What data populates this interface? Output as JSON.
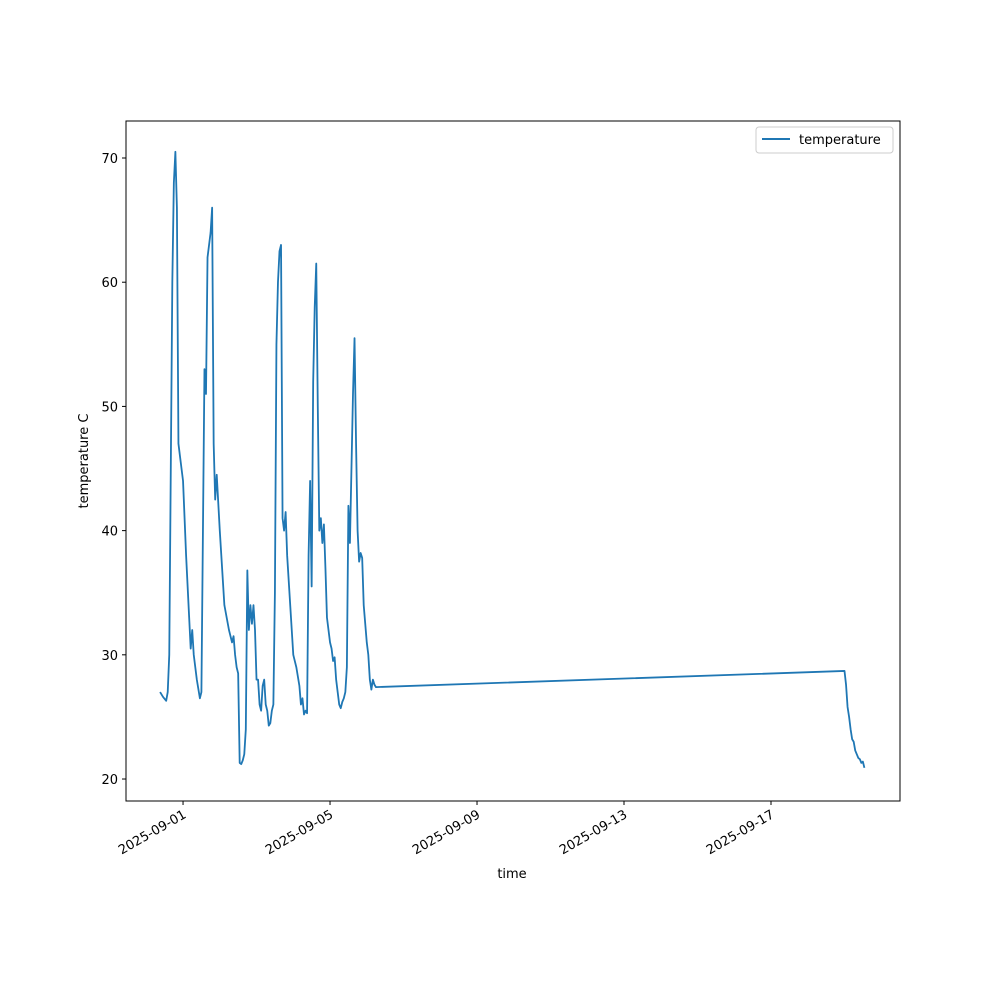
{
  "chart_data": {
    "type": "line",
    "title_x": "time",
    "x_label": "time",
    "y_label": "temperature C",
    "legend": "upper right",
    "grid": false,
    "xlim": [
      "2025-08-30T10:45",
      "2025-09-20T12:15"
    ],
    "xticks": [
      "2025-09-01",
      "2025-09-05",
      "2025-09-09",
      "2025-09-13",
      "2025-09-17"
    ],
    "ylim": [
      18.23,
      72.98
    ],
    "yticks": [
      20,
      30,
      40,
      50,
      60,
      70
    ],
    "x": [
      "2025-08-31T09:00",
      "2025-08-31T11:00",
      "2025-08-31T13:00",
      "2025-08-31T14:00",
      "2025-08-31T15:00",
      "2025-08-31T17:00",
      "2025-08-31T18:00",
      "2025-08-31T19:00",
      "2025-08-31T20:00",
      "2025-08-31T21:00",
      "2025-08-31T22:00",
      "2025-09-01T00:00",
      "2025-09-01T02:00",
      "2025-09-01T04:00",
      "2025-09-01T05:00",
      "2025-09-01T06:00",
      "2025-09-01T07:00",
      "2025-09-01T09:00",
      "2025-09-01T11:00",
      "2025-09-01T12:00",
      "2025-09-01T13:00",
      "2025-09-01T14:00",
      "2025-09-01T15:00",
      "2025-09-01T16:00",
      "2025-09-01T18:00",
      "2025-09-01T19:00",
      "2025-09-01T20:00",
      "2025-09-01T21:00",
      "2025-09-01T22:00",
      "2025-09-02T00:00",
      "2025-09-02T03:00",
      "2025-09-02T06:00",
      "2025-09-02T08:00",
      "2025-09-02T09:00",
      "2025-09-02T10:00",
      "2025-09-02T11:00",
      "2025-09-02T12:00",
      "2025-09-02T13:00",
      "2025-09-02T14:00",
      "2025-09-02T15:00",
      "2025-09-02T16:00",
      "2025-09-02T17:00",
      "2025-09-02T18:00",
      "2025-09-02T19:00",
      "2025-09-02T20:00",
      "2025-09-02T21:00",
      "2025-09-02T22:00",
      "2025-09-02T23:00",
      "2025-09-03T00:00",
      "2025-09-03T01:00",
      "2025-09-03T02:00",
      "2025-09-03T03:00",
      "2025-09-03T04:00",
      "2025-09-03T05:00",
      "2025-09-03T06:00",
      "2025-09-03T07:00",
      "2025-09-03T08:00",
      "2025-09-03T09:00",
      "2025-09-03T10:00",
      "2025-09-03T11:00",
      "2025-09-03T12:00",
      "2025-09-03T13:00",
      "2025-09-03T14:00",
      "2025-09-03T15:00",
      "2025-09-03T16:00",
      "2025-09-03T17:00",
      "2025-09-03T18:00",
      "2025-09-03T19:00",
      "2025-09-03T20:00",
      "2025-09-03T22:00",
      "2025-09-04T00:00",
      "2025-09-04T02:00",
      "2025-09-04T04:00",
      "2025-09-04T05:00",
      "2025-09-04T06:00",
      "2025-09-04T07:00",
      "2025-09-04T08:00",
      "2025-09-04T09:00",
      "2025-09-04T10:00",
      "2025-09-04T11:00",
      "2025-09-04T12:00",
      "2025-09-04T13:00",
      "2025-09-04T14:00",
      "2025-09-04T15:00",
      "2025-09-04T16:00",
      "2025-09-04T17:00",
      "2025-09-04T18:00",
      "2025-09-04T19:00",
      "2025-09-04T20:00",
      "2025-09-04T21:00",
      "2025-09-04T22:00",
      "2025-09-05T00:00",
      "2025-09-05T01:00",
      "2025-09-05T02:00",
      "2025-09-05T03:00",
      "2025-09-05T04:00",
      "2025-09-05T05:00",
      "2025-09-05T06:00",
      "2025-09-05T07:00",
      "2025-09-05T08:00",
      "2025-09-05T09:00",
      "2025-09-05T10:00",
      "2025-09-05T11:00",
      "2025-09-05T12:00",
      "2025-09-05T13:00",
      "2025-09-05T14:00",
      "2025-09-05T15:00",
      "2025-09-05T16:00",
      "2025-09-05T17:00",
      "2025-09-05T18:00",
      "2025-09-05T19:00",
      "2025-09-05T20:00",
      "2025-09-05T21:00",
      "2025-09-05T22:00",
      "2025-09-06T00:00",
      "2025-09-06T01:00",
      "2025-09-06T02:00",
      "2025-09-06T03:00",
      "2025-09-06T04:00",
      "2025-09-06T05:00",
      "2025-09-06T06:00",
      "2025-09-19T00:00",
      "2025-09-19T01:00",
      "2025-09-19T02:00",
      "2025-09-19T03:00",
      "2025-09-19T04:00",
      "2025-09-19T05:00",
      "2025-09-19T06:00",
      "2025-09-19T07:00",
      "2025-09-19T08:00",
      "2025-09-19T09:00",
      "2025-09-19T10:00",
      "2025-09-19T11:00",
      "2025-09-19T12:00",
      "2025-09-19T13:00"
    ],
    "series": [
      {
        "name": "temperature",
        "color": "#1f77b4",
        "values": [
          27.0,
          26.6,
          26.3,
          27,
          30,
          60,
          68,
          70.5,
          66,
          47,
          46,
          44,
          38,
          33,
          30.5,
          32,
          30,
          28,
          26.5,
          27,
          40,
          53,
          51,
          62,
          64,
          66,
          47,
          42.5,
          44.5,
          40,
          34,
          32,
          31,
          31.5,
          30,
          29,
          28.5,
          21.3,
          21.2,
          21.5,
          22,
          24,
          36.8,
          32,
          34,
          32.5,
          34,
          32,
          28,
          28,
          26,
          25.5,
          27.5,
          28,
          26,
          25.5,
          24.3,
          24.5,
          25.5,
          26,
          35,
          55,
          60,
          62.5,
          63,
          41,
          40,
          41.5,
          38,
          34,
          30,
          29,
          27.5,
          26,
          26.5,
          25.2,
          25.5,
          25.3,
          38,
          44,
          35.5,
          52,
          58,
          61.5,
          50,
          40,
          41,
          39,
          40.5,
          37,
          33,
          31,
          30.5,
          29.5,
          29.8,
          28,
          27,
          26,
          25.7,
          26.2,
          26.5,
          27,
          29,
          42,
          39,
          45,
          51,
          55.5,
          47,
          40,
          37.5,
          38.2,
          37.8,
          34,
          31,
          30,
          28,
          27.2,
          28,
          27.6,
          27.4,
          28.7,
          27.6,
          25.8,
          25,
          24,
          23.2,
          23,
          22.3,
          22,
          21.7,
          21.6,
          21.3,
          21.4,
          20.9
        ]
      }
    ]
  }
}
